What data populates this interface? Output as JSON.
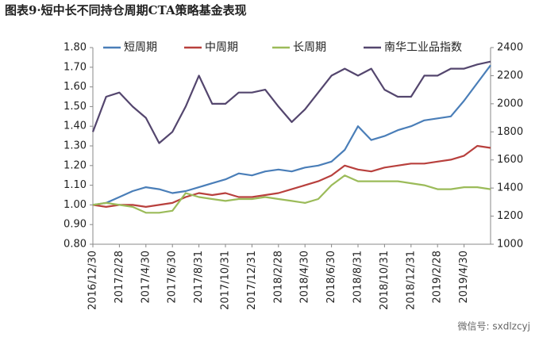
{
  "chart_data": {
    "type": "line",
    "title": "图表9·短中长不同持仓周期CTA策略基金表现",
    "watermark": "微信号: sxdlzcyj",
    "categories": [
      "2016/12/30",
      null,
      "2017/2/28",
      null,
      "2017/4/30",
      null,
      "2017/6/30",
      null,
      "2017/8/31",
      null,
      "2017/10/31",
      null,
      "2017/12/31",
      null,
      "2018/2/28",
      null,
      "2018/4/30",
      null,
      "2018/6/30",
      null,
      "2018/8/31",
      null,
      "2018/10/31",
      null,
      "2018/12/31",
      null,
      "2019/2/28",
      null,
      "2019/4/30",
      null,
      null
    ],
    "series": [
      {
        "name": "短周期",
        "color": "#4a7eb8",
        "values": [
          1.0,
          1.01,
          1.04,
          1.07,
          1.09,
          1.08,
          1.06,
          1.07,
          1.09,
          1.11,
          1.13,
          1.16,
          1.15,
          1.17,
          1.18,
          1.17,
          1.19,
          1.2,
          1.22,
          1.28,
          1.4,
          1.33,
          1.35,
          1.38,
          1.4,
          1.43,
          1.44,
          1.45,
          1.53,
          1.62,
          1.71
        ]
      },
      {
        "name": "中周期",
        "color": "#b8403d",
        "values": [
          1.0,
          0.99,
          1.0,
          1.0,
          0.99,
          1.0,
          1.01,
          1.04,
          1.06,
          1.05,
          1.06,
          1.04,
          1.04,
          1.05,
          1.06,
          1.08,
          1.1,
          1.12,
          1.15,
          1.2,
          1.18,
          1.17,
          1.19,
          1.2,
          1.21,
          1.21,
          1.22,
          1.23,
          1.25,
          1.3,
          1.29
        ]
      },
      {
        "name": "长周期",
        "color": "#9bbb59",
        "values": [
          1.0,
          1.01,
          1.0,
          0.99,
          0.96,
          0.96,
          0.97,
          1.06,
          1.04,
          1.03,
          1.02,
          1.03,
          1.03,
          1.04,
          1.03,
          1.02,
          1.01,
          1.03,
          1.1,
          1.15,
          1.12,
          1.12,
          1.12,
          1.12,
          1.11,
          1.1,
          1.08,
          1.08,
          1.09,
          1.09,
          1.08
        ]
      },
      {
        "name": "南华工业品指数",
        "color": "#54466e",
        "axis": "y2",
        "values": [
          1800,
          2050,
          2080,
          1980,
          1900,
          1720,
          1800,
          1980,
          2200,
          2000,
          2000,
          2080,
          2080,
          2100,
          1980,
          1870,
          1960,
          2080,
          2200,
          2250,
          2200,
          2250,
          2100,
          2050,
          2050,
          2200,
          2200,
          2250,
          2250,
          2280,
          2300
        ]
      }
    ],
    "ylim": [
      0.8,
      1.8
    ],
    "yticks": [
      {
        "value": 0.8,
        "label": "0.80"
      },
      {
        "value": 0.9,
        "label": "0.90"
      },
      {
        "value": 1.0,
        "label": "1.00"
      },
      {
        "value": 1.1,
        "label": "1.10"
      },
      {
        "value": 1.2,
        "label": "1.20"
      },
      {
        "value": 1.3,
        "label": "1.30"
      },
      {
        "value": 1.4,
        "label": "1.40"
      },
      {
        "value": 1.5,
        "label": "1.50"
      },
      {
        "value": 1.6,
        "label": "1.60"
      },
      {
        "value": 1.7,
        "label": "1.70"
      },
      {
        "value": 1.8,
        "label": "1.80"
      }
    ],
    "y2lim": [
      1000,
      2400
    ],
    "y2ticks": [
      1000,
      1200,
      1400,
      1600,
      1800,
      2000,
      2200,
      2400
    ],
    "legend": "top",
    "grid": false
  }
}
